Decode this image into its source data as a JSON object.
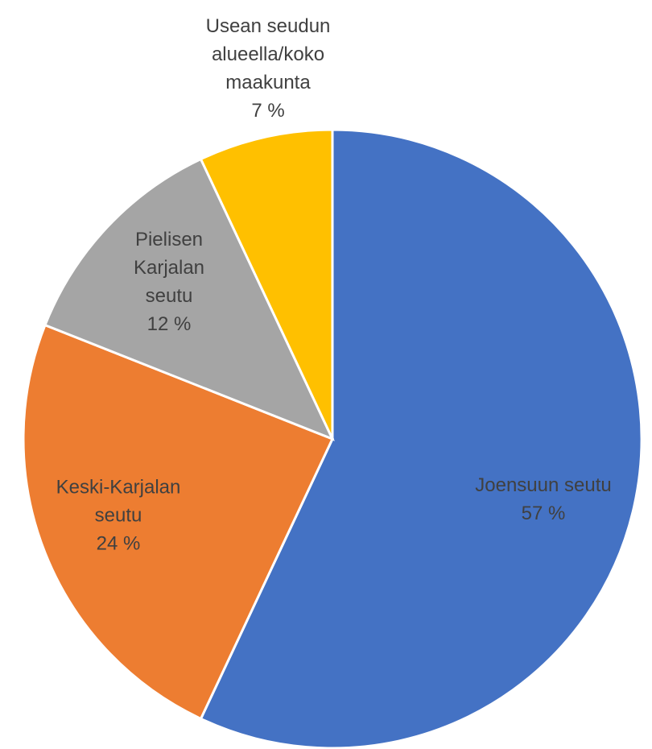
{
  "chart_data": {
    "type": "pie",
    "categories": [
      "Joensuun seutu",
      "Keski-Karjalan seutu",
      "Pielisen Karjalan seutu",
      "Usean seudun alueella/koko maakunta"
    ],
    "values": [
      57,
      24,
      12,
      7
    ],
    "value_labels": [
      "57 %",
      "24 %",
      "12 %",
      "7 %"
    ],
    "colors": [
      "#4472c4",
      "#ed7d31",
      "#a5a5a5",
      "#ffc000"
    ]
  }
}
